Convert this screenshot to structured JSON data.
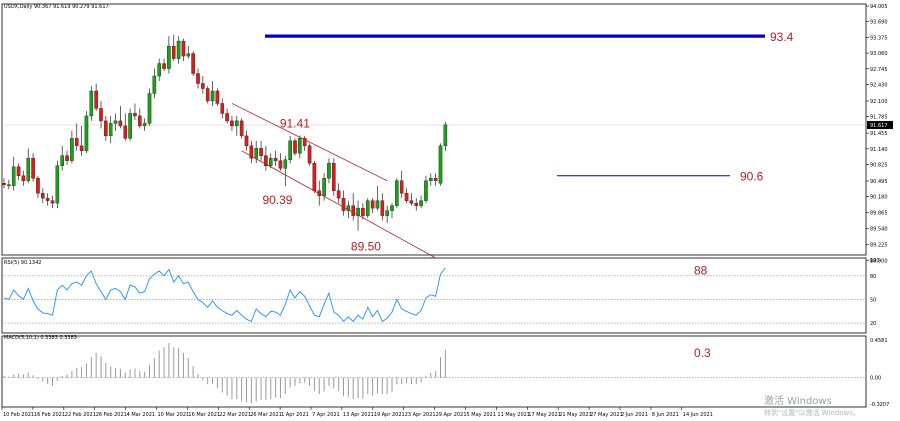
{
  "window": {
    "header": "USDX,Daily  90.367 91.619 90.279 91.617",
    "watermark_main": "激活 Windows",
    "watermark_sub": "转到\"设置\"以激活 Windows。"
  },
  "chart_data": [
    {
      "type": "candlestick",
      "title": "USDX,Daily  90.367 91.619 90.279 91.617",
      "symbol": "USDX",
      "timeframe": "Daily",
      "ohlc_readout": {
        "open": 90.367,
        "high": 91.619,
        "low": 90.279,
        "close": 91.617
      },
      "current_price_label": "91.617",
      "ylim": [
        89.07,
        94.005
      ],
      "y_ticks": [
        {
          "v": 94.005,
          "label": "94.005"
        },
        {
          "v": 93.69,
          "label": "93.690"
        },
        {
          "v": 93.375,
          "label": "93.375"
        },
        {
          "v": 93.06,
          "label": "93.060"
        },
        {
          "v": 92.745,
          "label": "92.745"
        },
        {
          "v": 92.43,
          "label": "92.430"
        },
        {
          "v": 92.1,
          "label": "92.100"
        },
        {
          "v": 91.785,
          "label": "91.785"
        },
        {
          "v": 91.455,
          "label": "91.455"
        },
        {
          "v": 91.14,
          "label": "91.140"
        },
        {
          "v": 90.825,
          "label": "90.825"
        },
        {
          "v": 90.495,
          "label": "90.495"
        },
        {
          "v": 90.18,
          "label": "90.180"
        },
        {
          "v": 89.865,
          "label": "89.865"
        },
        {
          "v": 89.54,
          "label": "89.540"
        },
        {
          "v": 89.225,
          "label": "89.225"
        },
        {
          "v": 88.9,
          "label": "88.900"
        }
      ],
      "x_labels": [
        "10 Feb 2021",
        "16 Feb 2021",
        "22 Feb 2021",
        "26 Feb 2021",
        "4 Mar 2021",
        "10 Mar 2021",
        "16 Mar 2021",
        "22 Mar 2021",
        "26 Mar 2021",
        "1 Apr 2021",
        "7 Apr 2021",
        "13 Apr 2021",
        "19 Apr 2021",
        "23 Apr 2021",
        "29 Apr 2021",
        "5 May 2021",
        "11 May 2021",
        "17 May 2021",
        "21 May 2021",
        "27 May 2021",
        "2 Jun 2021",
        "8 Jun 2021",
        "14 Jun 2021"
      ],
      "series": [
        {
          "o": 90.45,
          "h": 90.55,
          "l": 90.35,
          "c": 90.42
        },
        {
          "o": 90.42,
          "h": 90.52,
          "l": 90.33,
          "c": 90.4
        },
        {
          "o": 90.4,
          "h": 90.98,
          "l": 90.3,
          "c": 90.78
        },
        {
          "o": 90.78,
          "h": 90.85,
          "l": 90.52,
          "c": 90.6
        },
        {
          "o": 90.6,
          "h": 90.7,
          "l": 90.4,
          "c": 90.5
        },
        {
          "o": 90.5,
          "h": 91.15,
          "l": 90.45,
          "c": 90.95
        },
        {
          "o": 90.95,
          "h": 91.05,
          "l": 90.48,
          "c": 90.55
        },
        {
          "o": 90.55,
          "h": 90.6,
          "l": 90.15,
          "c": 90.25
        },
        {
          "o": 90.25,
          "h": 90.35,
          "l": 90.05,
          "c": 90.15
        },
        {
          "o": 90.15,
          "h": 90.25,
          "l": 90.0,
          "c": 90.1
        },
        {
          "o": 90.1,
          "h": 90.2,
          "l": 89.95,
          "c": 90.05
        },
        {
          "o": 90.05,
          "h": 90.9,
          "l": 89.95,
          "c": 90.8
        },
        {
          "o": 90.8,
          "h": 91.2,
          "l": 90.7,
          "c": 91.0
        },
        {
          "o": 91.0,
          "h": 91.1,
          "l": 90.82,
          "c": 90.9
        },
        {
          "o": 90.9,
          "h": 91.5,
          "l": 90.85,
          "c": 91.35
        },
        {
          "o": 91.35,
          "h": 91.65,
          "l": 91.1,
          "c": 91.2
        },
        {
          "o": 91.2,
          "h": 91.6,
          "l": 91.0,
          "c": 91.1
        },
        {
          "o": 91.1,
          "h": 91.9,
          "l": 91.05,
          "c": 91.8
        },
        {
          "o": 91.8,
          "h": 92.4,
          "l": 91.7,
          "c": 92.3
        },
        {
          "o": 92.3,
          "h": 92.45,
          "l": 91.9,
          "c": 91.95
        },
        {
          "o": 91.95,
          "h": 92.1,
          "l": 91.55,
          "c": 91.7
        },
        {
          "o": 91.7,
          "h": 91.8,
          "l": 91.3,
          "c": 91.4
        },
        {
          "o": 91.4,
          "h": 91.8,
          "l": 91.25,
          "c": 91.65
        },
        {
          "o": 91.65,
          "h": 91.85,
          "l": 91.5,
          "c": 91.7
        },
        {
          "o": 91.7,
          "h": 92.0,
          "l": 91.55,
          "c": 91.6
        },
        {
          "o": 91.6,
          "h": 91.85,
          "l": 91.3,
          "c": 91.35
        },
        {
          "o": 91.35,
          "h": 91.95,
          "l": 91.3,
          "c": 91.85
        },
        {
          "o": 91.85,
          "h": 92.05,
          "l": 91.72,
          "c": 91.8
        },
        {
          "o": 91.8,
          "h": 91.95,
          "l": 91.55,
          "c": 91.6
        },
        {
          "o": 91.6,
          "h": 91.75,
          "l": 91.5,
          "c": 91.65
        },
        {
          "o": 91.65,
          "h": 92.35,
          "l": 91.6,
          "c": 92.25
        },
        {
          "o": 92.25,
          "h": 92.75,
          "l": 92.15,
          "c": 92.6
        },
        {
          "o": 92.6,
          "h": 92.95,
          "l": 92.5,
          "c": 92.85
        },
        {
          "o": 92.85,
          "h": 92.95,
          "l": 92.7,
          "c": 92.75
        },
        {
          "o": 92.75,
          "h": 93.4,
          "l": 92.65,
          "c": 93.2
        },
        {
          "o": 93.2,
          "h": 93.43,
          "l": 92.9,
          "c": 92.95
        },
        {
          "o": 92.95,
          "h": 93.4,
          "l": 92.85,
          "c": 93.3
        },
        {
          "o": 93.3,
          "h": 93.35,
          "l": 92.9,
          "c": 93.0
        },
        {
          "o": 93.0,
          "h": 93.2,
          "l": 92.95,
          "c": 93.05
        },
        {
          "o": 93.05,
          "h": 93.1,
          "l": 92.6,
          "c": 92.65
        },
        {
          "o": 92.65,
          "h": 92.75,
          "l": 92.35,
          "c": 92.45
        },
        {
          "o": 92.45,
          "h": 92.6,
          "l": 92.25,
          "c": 92.35
        },
        {
          "o": 92.35,
          "h": 92.4,
          "l": 92.05,
          "c": 92.1
        },
        {
          "o": 92.1,
          "h": 92.5,
          "l": 92.0,
          "c": 92.3
        },
        {
          "o": 92.3,
          "h": 92.35,
          "l": 92.0,
          "c": 92.05
        },
        {
          "o": 92.05,
          "h": 92.15,
          "l": 91.75,
          "c": 91.85
        },
        {
          "o": 91.85,
          "h": 91.95,
          "l": 91.65,
          "c": 91.7
        },
        {
          "o": 91.7,
          "h": 91.8,
          "l": 91.5,
          "c": 91.6
        },
        {
          "o": 91.6,
          "h": 91.8,
          "l": 91.4,
          "c": 91.7
        },
        {
          "o": 91.7,
          "h": 91.75,
          "l": 91.35,
          "c": 91.4
        },
        {
          "o": 91.4,
          "h": 91.5,
          "l": 91.1,
          "c": 91.2
        },
        {
          "o": 91.2,
          "h": 91.3,
          "l": 90.85,
          "c": 90.95
        },
        {
          "o": 90.95,
          "h": 91.3,
          "l": 90.85,
          "c": 91.15
        },
        {
          "o": 91.15,
          "h": 91.3,
          "l": 90.9,
          "c": 91.0
        },
        {
          "o": 91.0,
          "h": 91.2,
          "l": 90.7,
          "c": 90.8
        },
        {
          "o": 90.8,
          "h": 91.05,
          "l": 90.75,
          "c": 90.95
        },
        {
          "o": 90.95,
          "h": 91.1,
          "l": 90.8,
          "c": 90.9
        },
        {
          "o": 90.9,
          "h": 91.05,
          "l": 90.7,
          "c": 90.75
        },
        {
          "o": 90.75,
          "h": 91.0,
          "l": 90.39,
          "c": 90.92
        },
        {
          "o": 90.92,
          "h": 91.4,
          "l": 90.85,
          "c": 91.3
        },
        {
          "o": 91.3,
          "h": 91.35,
          "l": 91.0,
          "c": 91.05
        },
        {
          "o": 91.05,
          "h": 91.41,
          "l": 90.95,
          "c": 91.35
        },
        {
          "o": 91.35,
          "h": 91.4,
          "l": 91.1,
          "c": 91.2
        },
        {
          "o": 91.2,
          "h": 91.25,
          "l": 90.8,
          "c": 90.85
        },
        {
          "o": 90.85,
          "h": 90.9,
          "l": 90.25,
          "c": 90.3
        },
        {
          "o": 90.3,
          "h": 90.5,
          "l": 90.0,
          "c": 90.2
        },
        {
          "o": 90.2,
          "h": 90.65,
          "l": 90.1,
          "c": 90.55
        },
        {
          "o": 90.55,
          "h": 90.95,
          "l": 90.45,
          "c": 90.85
        },
        {
          "o": 90.85,
          "h": 90.95,
          "l": 90.2,
          "c": 90.3
        },
        {
          "o": 90.3,
          "h": 90.45,
          "l": 90.05,
          "c": 90.15
        },
        {
          "o": 90.15,
          "h": 90.3,
          "l": 89.8,
          "c": 89.9
        },
        {
          "o": 89.9,
          "h": 90.1,
          "l": 89.75,
          "c": 90.0
        },
        {
          "o": 90.0,
          "h": 90.25,
          "l": 89.7,
          "c": 89.8
        },
        {
          "o": 89.8,
          "h": 90.1,
          "l": 89.5,
          "c": 89.95
        },
        {
          "o": 89.95,
          "h": 90.05,
          "l": 89.72,
          "c": 89.8
        },
        {
          "o": 89.8,
          "h": 90.15,
          "l": 89.75,
          "c": 90.1
        },
        {
          "o": 90.1,
          "h": 90.15,
          "l": 89.85,
          "c": 89.95
        },
        {
          "o": 89.95,
          "h": 90.4,
          "l": 89.9,
          "c": 90.1
        },
        {
          "o": 90.1,
          "h": 90.25,
          "l": 89.7,
          "c": 89.8
        },
        {
          "o": 89.8,
          "h": 90.0,
          "l": 89.65,
          "c": 89.9
        },
        {
          "o": 89.9,
          "h": 90.05,
          "l": 89.75,
          "c": 90.0
        },
        {
          "o": 90.0,
          "h": 90.55,
          "l": 89.95,
          "c": 90.5
        },
        {
          "o": 90.5,
          "h": 90.7,
          "l": 90.15,
          "c": 90.25
        },
        {
          "o": 90.25,
          "h": 90.35,
          "l": 90.05,
          "c": 90.1
        },
        {
          "o": 90.1,
          "h": 90.25,
          "l": 90.0,
          "c": 90.05
        },
        {
          "o": 90.05,
          "h": 90.15,
          "l": 89.9,
          "c": 90.0
        },
        {
          "o": 90.0,
          "h": 90.2,
          "l": 89.95,
          "c": 90.1
        },
        {
          "o": 90.1,
          "h": 90.6,
          "l": 90.05,
          "c": 90.5
        },
        {
          "o": 90.5,
          "h": 90.65,
          "l": 90.4,
          "c": 90.55
        },
        {
          "o": 90.55,
          "h": 90.65,
          "l": 90.4,
          "c": 90.5
        },
        {
          "o": 90.45,
          "h": 91.25,
          "l": 90.4,
          "c": 91.2
        },
        {
          "o": 91.2,
          "h": 91.68,
          "l": 91.1,
          "c": 91.62
        }
      ],
      "levels": [
        {
          "name": "resistance-93-4",
          "value": 93.4,
          "label": "93.4",
          "color": "#0000cc"
        },
        {
          "name": "breakout-90-6",
          "value": 90.6,
          "label": "90.6",
          "color": "#0000cc"
        }
      ],
      "channel": {
        "color": "#b22222",
        "upper": [
          {
            "bar": 47,
            "v": 92.05
          },
          {
            "bar": 79,
            "v": 90.5
          }
        ],
        "lower": [
          {
            "bar": 49,
            "v": 91.1
          },
          {
            "bar": 89,
            "v": 88.95
          }
        ]
      },
      "annotations": [
        {
          "label": "91.41",
          "bar": 61,
          "v": 91.41
        },
        {
          "label": "90.39",
          "bar": 57,
          "v": 90.39
        },
        {
          "label": "89.50",
          "bar": 74,
          "v": 89.5
        }
      ]
    },
    {
      "type": "line",
      "title": "RSI(5) 90.1342",
      "ylim": [
        10,
        100
      ],
      "y_ticks": [
        {
          "v": 100,
          "label": "100"
        },
        {
          "v": 80,
          "label": "80"
        },
        {
          "v": 50,
          "label": "50"
        },
        {
          "v": 20,
          "label": "20"
        }
      ],
      "levels": [
        80,
        50,
        20
      ],
      "annotation": {
        "label": "88",
        "v": 88
      },
      "values": [
        52,
        50,
        62,
        55,
        50,
        64,
        48,
        38,
        33,
        32,
        30,
        62,
        68,
        62,
        70,
        72,
        68,
        80,
        86,
        70,
        60,
        50,
        62,
        64,
        60,
        50,
        68,
        66,
        58,
        60,
        76,
        82,
        86,
        80,
        88,
        72,
        80,
        70,
        72,
        60,
        50,
        46,
        40,
        48,
        40,
        36,
        32,
        30,
        36,
        30,
        25,
        22,
        38,
        32,
        28,
        35,
        34,
        30,
        44,
        62,
        52,
        60,
        54,
        42,
        30,
        28,
        44,
        58,
        34,
        30,
        22,
        28,
        22,
        30,
        25,
        40,
        28,
        36,
        22,
        26,
        34,
        50,
        38,
        35,
        32,
        30,
        36,
        52,
        56,
        54,
        82,
        90
      ]
    },
    {
      "type": "bar",
      "title": "MACD(5,10,1) 0.3383 0.3383",
      "ylim": [
        -0.3207,
        0.4581
      ],
      "y_ticks": [
        {
          "v": 0.4581,
          "label": "0.4581"
        },
        {
          "v": 0.0,
          "label": "0.00"
        },
        {
          "v": -0.3207,
          "label": "-0.3207"
        }
      ],
      "annotation": {
        "label": "0.3",
        "v": 0.3
      },
      "values": [
        0.02,
        0.01,
        0.04,
        0.05,
        0.04,
        0.06,
        0.03,
        -0.02,
        -0.05,
        -0.08,
        -0.1,
        -0.04,
        0.02,
        0.04,
        0.08,
        0.12,
        0.13,
        0.17,
        0.25,
        0.3,
        0.26,
        0.18,
        0.14,
        0.12,
        0.11,
        0.06,
        0.1,
        0.11,
        0.08,
        0.07,
        0.15,
        0.24,
        0.33,
        0.37,
        0.42,
        0.37,
        0.36,
        0.3,
        0.24,
        0.14,
        0.04,
        -0.03,
        -0.08,
        -0.08,
        -0.13,
        -0.18,
        -0.22,
        -0.26,
        -0.26,
        -0.29,
        -0.3,
        -0.31,
        -0.29,
        -0.27,
        -0.27,
        -0.26,
        -0.24,
        -0.25,
        -0.2,
        -0.12,
        -0.1,
        -0.07,
        -0.06,
        -0.1,
        -0.16,
        -0.2,
        -0.17,
        -0.1,
        -0.13,
        -0.16,
        -0.22,
        -0.24,
        -0.26,
        -0.25,
        -0.26,
        -0.2,
        -0.22,
        -0.19,
        -0.2,
        -0.2,
        -0.17,
        -0.08,
        -0.08,
        -0.07,
        -0.08,
        -0.08,
        -0.06,
        0.02,
        0.06,
        0.08,
        0.25,
        0.34
      ]
    }
  ]
}
